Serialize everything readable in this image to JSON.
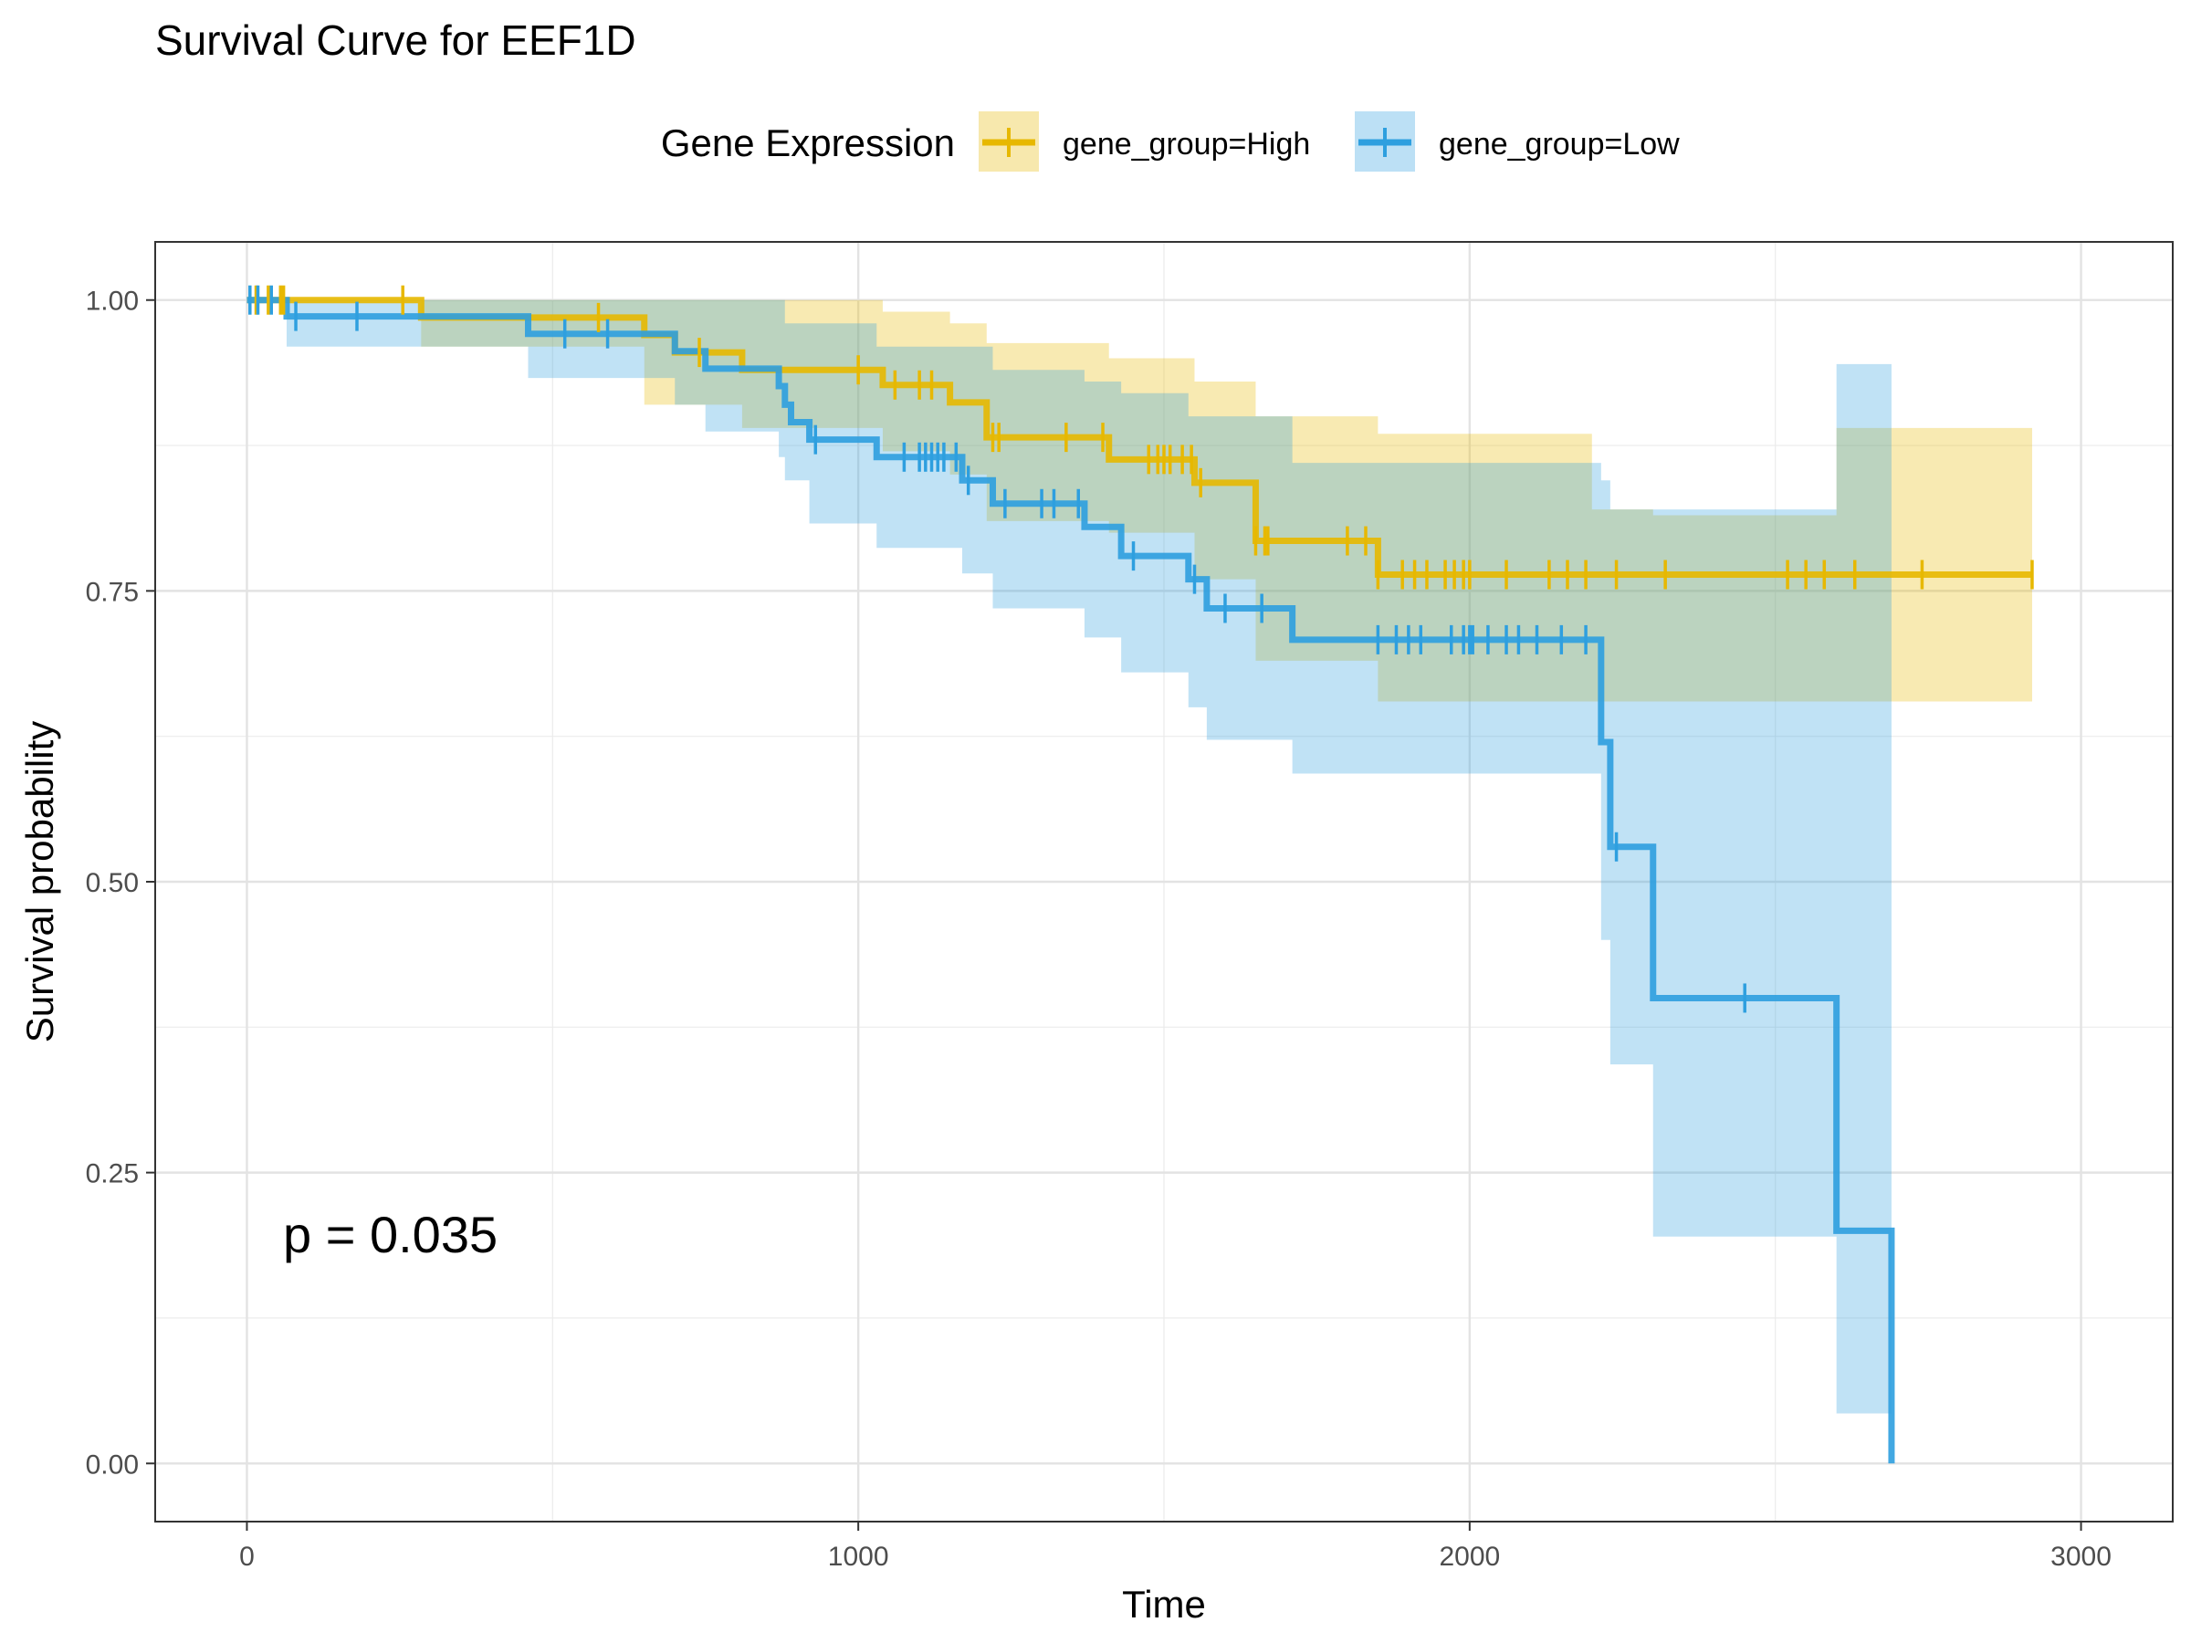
{
  "chart_data": {
    "type": "line",
    "subtype": "kaplan-meier",
    "title": "Survival Curve for EEF1D",
    "xlabel": "Time",
    "ylabel": "Survival probability",
    "xlim": [
      -150,
      3150
    ],
    "ylim": [
      -0.05,
      1.05
    ],
    "xticks": [
      0,
      1000,
      2000,
      3000
    ],
    "xtick_labels": [
      "0",
      "1000",
      "2000",
      "3000"
    ],
    "yticks": [
      0,
      0.25,
      0.5,
      0.75,
      1.0
    ],
    "ytick_labels": [
      "0.00",
      "0.25",
      "0.50",
      "0.75",
      "1.00"
    ],
    "grid": true,
    "legend": {
      "title": "Gene Expression",
      "position": "top"
    },
    "annotation": "p = 0.035",
    "series": [
      {
        "name": "gene_group=High",
        "color": "#E7B800",
        "band_color": "#E7B800",
        "steps": [
          [
            0,
            1.0
          ],
          [
            285,
            0.985
          ],
          [
            650,
            0.97
          ],
          [
            700,
            0.955
          ],
          [
            810,
            0.94
          ],
          [
            1040,
            0.927
          ],
          [
            1150,
            0.912
          ],
          [
            1210,
            0.882
          ],
          [
            1410,
            0.863
          ],
          [
            1550,
            0.843
          ],
          [
            1650,
            0.793
          ],
          [
            1850,
            0.764
          ],
          [
            2920,
            0.764
          ]
        ],
        "upper": [
          [
            0,
            1.0
          ],
          [
            285,
            1.0
          ],
          [
            650,
            1.0
          ],
          [
            700,
            1.0
          ],
          [
            810,
            1.0
          ],
          [
            1040,
            0.99
          ],
          [
            1150,
            0.98
          ],
          [
            1210,
            0.963
          ],
          [
            1410,
            0.95
          ],
          [
            1550,
            0.93
          ],
          [
            1650,
            0.9
          ],
          [
            1850,
            0.885
          ],
          [
            2200,
            0.82
          ],
          [
            2300,
            0.815
          ],
          [
            2600,
            0.89
          ],
          [
            2920,
            0.89
          ]
        ],
        "lower": [
          [
            0,
            1.0
          ],
          [
            285,
            0.96
          ],
          [
            650,
            0.91
          ],
          [
            700,
            0.91
          ],
          [
            810,
            0.89
          ],
          [
            1040,
            0.87
          ],
          [
            1150,
            0.85
          ],
          [
            1210,
            0.81
          ],
          [
            1410,
            0.8
          ],
          [
            1550,
            0.76
          ],
          [
            1650,
            0.69
          ],
          [
            1850,
            0.655
          ],
          [
            2920,
            0.655
          ]
        ],
        "censor": [
          15,
          35,
          55,
          60,
          255,
          575,
          740,
          1000,
          1060,
          1100,
          1120,
          1220,
          1230,
          1340,
          1400,
          1475,
          1490,
          1500,
          1510,
          1530,
          1545,
          1560,
          1650,
          1665,
          1670,
          1800,
          1830,
          1850,
          1890,
          1910,
          1930,
          1960,
          1975,
          1990,
          2000,
          2060,
          2130,
          2160,
          2190,
          2240,
          2320,
          2520,
          2550,
          2580,
          2630,
          2740,
          2920
        ]
      },
      {
        "name": "gene_group=Low",
        "color": "#2E9FDF",
        "band_color": "#2E9FDF",
        "steps": [
          [
            0,
            1.0
          ],
          [
            65,
            0.986
          ],
          [
            460,
            0.971
          ],
          [
            700,
            0.956
          ],
          [
            750,
            0.941
          ],
          [
            870,
            0.926
          ],
          [
            880,
            0.91
          ],
          [
            890,
            0.895
          ],
          [
            920,
            0.88
          ],
          [
            1030,
            0.865
          ],
          [
            1170,
            0.845
          ],
          [
            1220,
            0.825
          ],
          [
            1370,
            0.805
          ],
          [
            1430,
            0.78
          ],
          [
            1540,
            0.76
          ],
          [
            1570,
            0.735
          ],
          [
            1710,
            0.708
          ],
          [
            2215,
            0.62
          ],
          [
            2230,
            0.53
          ],
          [
            2300,
            0.4
          ],
          [
            2600,
            0.2
          ],
          [
            2690,
            0.0
          ]
        ],
        "upper": [
          [
            0,
            1.0
          ],
          [
            65,
            1.0
          ],
          [
            460,
            1.0
          ],
          [
            700,
            1.0
          ],
          [
            880,
            0.98
          ],
          [
            1030,
            0.96
          ],
          [
            1220,
            0.94
          ],
          [
            1370,
            0.93
          ],
          [
            1430,
            0.92
          ],
          [
            1540,
            0.9
          ],
          [
            1710,
            0.86
          ],
          [
            2215,
            0.845
          ],
          [
            2230,
            0.82
          ],
          [
            2300,
            0.82
          ],
          [
            2600,
            0.945
          ],
          [
            2690,
            0.945
          ]
        ],
        "lower": [
          [
            0,
            1.0
          ],
          [
            65,
            0.96
          ],
          [
            460,
            0.933
          ],
          [
            700,
            0.91
          ],
          [
            750,
            0.887
          ],
          [
            870,
            0.865
          ],
          [
            880,
            0.845
          ],
          [
            920,
            0.808
          ],
          [
            1030,
            0.787
          ],
          [
            1170,
            0.765
          ],
          [
            1220,
            0.735
          ],
          [
            1370,
            0.71
          ],
          [
            1430,
            0.68
          ],
          [
            1540,
            0.65
          ],
          [
            1570,
            0.622
          ],
          [
            1710,
            0.593
          ],
          [
            2215,
            0.45
          ],
          [
            2230,
            0.343
          ],
          [
            2300,
            0.195
          ],
          [
            2600,
            0.043
          ],
          [
            2690,
            0.043
          ]
        ],
        "censor": [
          5,
          18,
          40,
          80,
          180,
          520,
          590,
          930,
          1075,
          1100,
          1110,
          1120,
          1130,
          1140,
          1160,
          1180,
          1240,
          1300,
          1320,
          1360,
          1450,
          1550,
          1600,
          1660,
          1850,
          1880,
          1900,
          1920,
          1970,
          1990,
          2000,
          2005,
          2030,
          2060,
          2080,
          2110,
          2150,
          2190,
          2240,
          2450
        ]
      }
    ]
  }
}
